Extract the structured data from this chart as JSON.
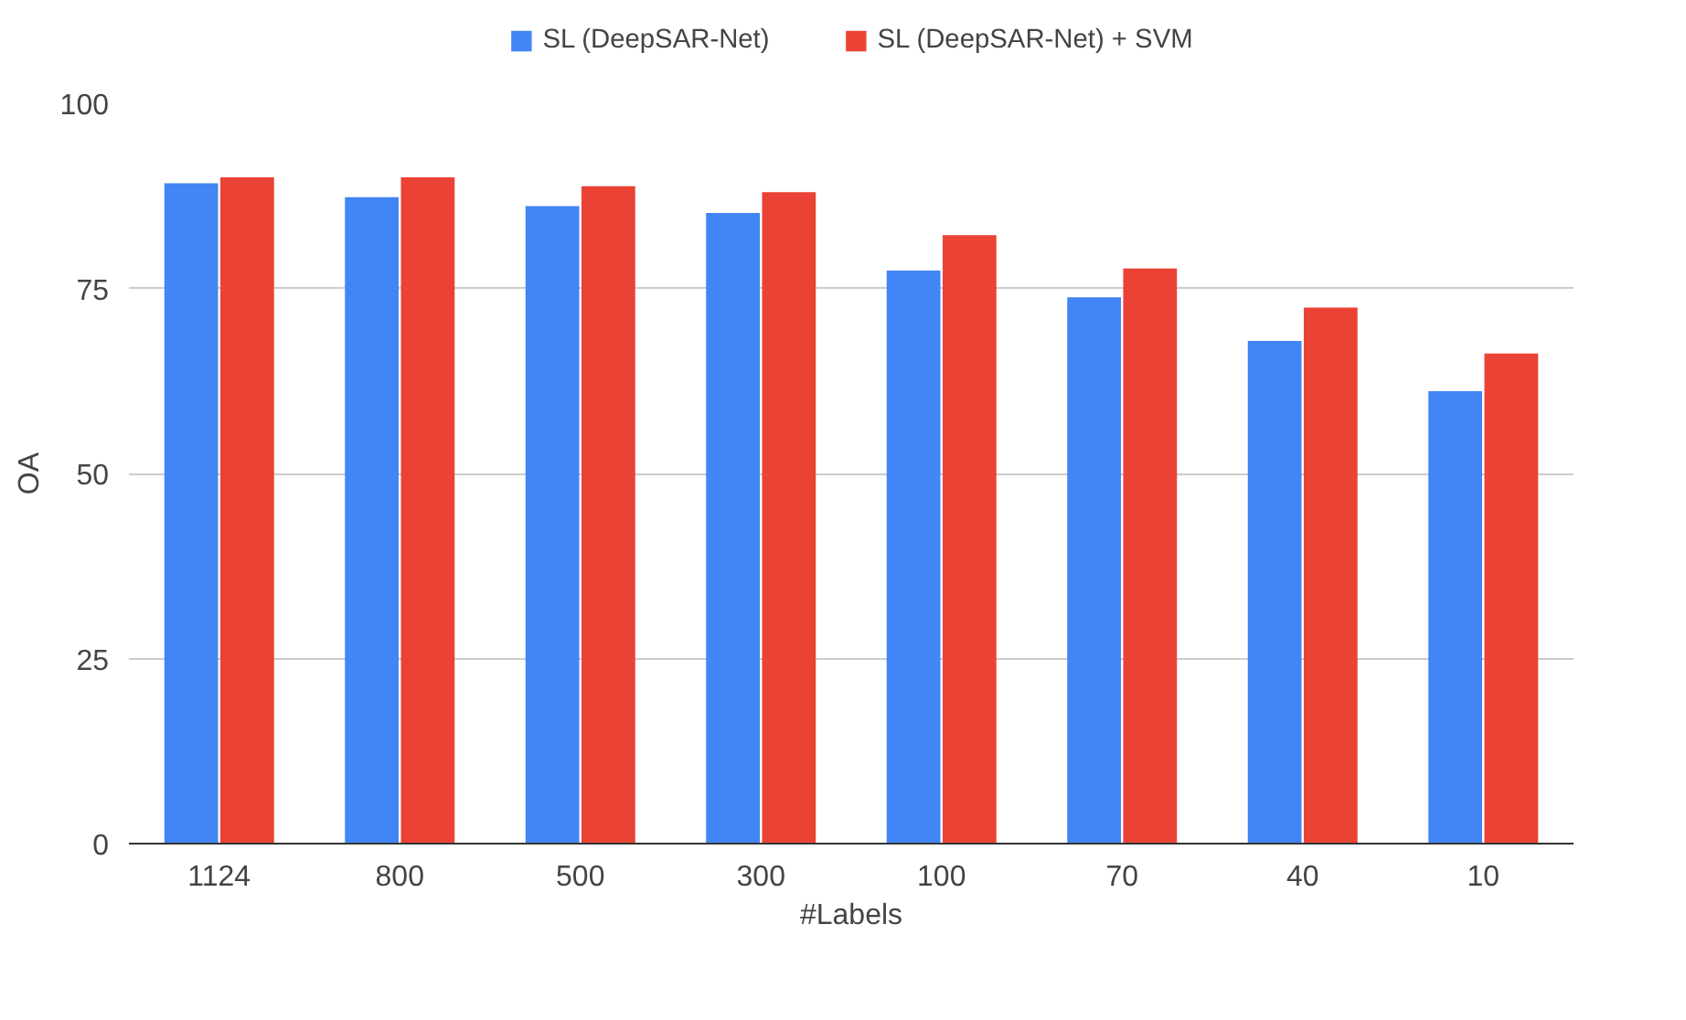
{
  "chart_data": {
    "type": "bar",
    "xlabel": "#Labels",
    "ylabel": "OA",
    "categories": [
      "1124",
      "800",
      "500",
      "300",
      "100",
      "70",
      "40",
      "10"
    ],
    "series": [
      {
        "name": "SL (DeepSAR-Net)",
        "color": "#4285f4",
        "values": [
          89.2,
          87.3,
          86.1,
          85.2,
          77.4,
          73.8,
          67.9,
          61.1
        ]
      },
      {
        "name": "SL (DeepSAR-Net) + SVM",
        "color": "#ea4335",
        "values": [
          90.0,
          90.0,
          88.8,
          88.0,
          82.2,
          77.7,
          72.4,
          66.2
        ]
      }
    ],
    "ylim": [
      0,
      100
    ],
    "yticks": [
      0,
      25,
      50,
      75,
      100
    ],
    "grid": "y",
    "legend": "top"
  }
}
